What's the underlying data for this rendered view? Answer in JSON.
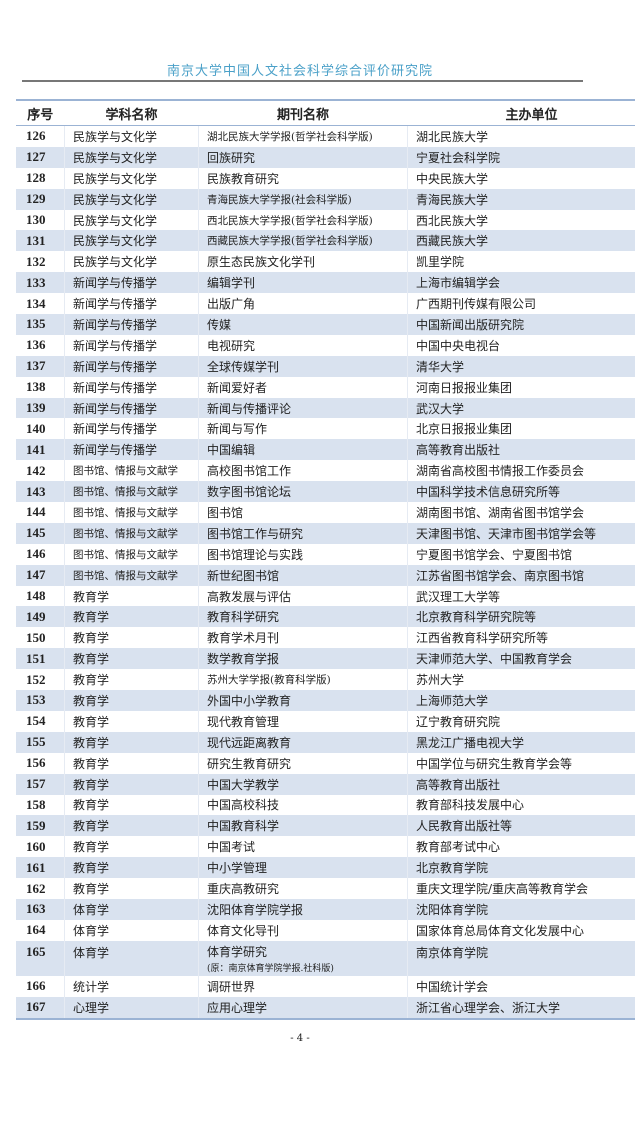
{
  "header": {
    "institution": "南京大学中国人文社会科学综合评价研究院"
  },
  "table": {
    "columns": [
      "序号",
      "学科名称",
      "期刊名称",
      "主办单位"
    ],
    "rows": [
      {
        "no": "126",
        "subject": "民族学与文化学",
        "journal": "湖北民族大学学报(哲学社会科学版)",
        "publisher": "湖北民族大学"
      },
      {
        "no": "127",
        "subject": "民族学与文化学",
        "journal": "回族研究",
        "publisher": "宁夏社会科学院"
      },
      {
        "no": "128",
        "subject": "民族学与文化学",
        "journal": "民族教育研究",
        "publisher": "中央民族大学"
      },
      {
        "no": "129",
        "subject": "民族学与文化学",
        "journal": "青海民族大学学报(社会科学版)",
        "publisher": "青海民族大学"
      },
      {
        "no": "130",
        "subject": "民族学与文化学",
        "journal": "西北民族大学学报(哲学社会科学版)",
        "publisher": "西北民族大学"
      },
      {
        "no": "131",
        "subject": "民族学与文化学",
        "journal": "西藏民族大学学报(哲学社会科学版)",
        "publisher": "西藏民族大学"
      },
      {
        "no": "132",
        "subject": "民族学与文化学",
        "journal": "原生态民族文化学刊",
        "publisher": "凯里学院"
      },
      {
        "no": "133",
        "subject": "新闻学与传播学",
        "journal": "编辑学刊",
        "publisher": "上海市编辑学会"
      },
      {
        "no": "134",
        "subject": "新闻学与传播学",
        "journal": "出版广角",
        "publisher": "广西期刊传媒有限公司"
      },
      {
        "no": "135",
        "subject": "新闻学与传播学",
        "journal": "传媒",
        "publisher": "中国新闻出版研究院"
      },
      {
        "no": "136",
        "subject": "新闻学与传播学",
        "journal": "电视研究",
        "publisher": "中国中央电视台"
      },
      {
        "no": "137",
        "subject": "新闻学与传播学",
        "journal": "全球传媒学刊",
        "publisher": "清华大学"
      },
      {
        "no": "138",
        "subject": "新闻学与传播学",
        "journal": "新闻爱好者",
        "publisher": "河南日报报业集团"
      },
      {
        "no": "139",
        "subject": "新闻学与传播学",
        "journal": "新闻与传播评论",
        "publisher": "武汉大学"
      },
      {
        "no": "140",
        "subject": "新闻学与传播学",
        "journal": "新闻与写作",
        "publisher": "北京日报报业集团"
      },
      {
        "no": "141",
        "subject": "新闻学与传播学",
        "journal": "中国编辑",
        "publisher": "高等教育出版社"
      },
      {
        "no": "142",
        "subject": "图书馆、情报与文献学",
        "journal": "高校图书馆工作",
        "publisher": "湖南省高校图书情报工作委员会"
      },
      {
        "no": "143",
        "subject": "图书馆、情报与文献学",
        "journal": "数字图书馆论坛",
        "publisher": "中国科学技术信息研究所等"
      },
      {
        "no": "144",
        "subject": "图书馆、情报与文献学",
        "journal": "图书馆",
        "publisher": "湖南图书馆、湖南省图书馆学会"
      },
      {
        "no": "145",
        "subject": "图书馆、情报与文献学",
        "journal": "图书馆工作与研究",
        "publisher": "天津图书馆、天津市图书馆学会等"
      },
      {
        "no": "146",
        "subject": "图书馆、情报与文献学",
        "journal": "图书馆理论与实践",
        "publisher": "宁夏图书馆学会、宁夏图书馆"
      },
      {
        "no": "147",
        "subject": "图书馆、情报与文献学",
        "journal": "新世纪图书馆",
        "publisher": "江苏省图书馆学会、南京图书馆"
      },
      {
        "no": "148",
        "subject": "教育学",
        "journal": "高教发展与评估",
        "publisher": "武汉理工大学等"
      },
      {
        "no": "149",
        "subject": "教育学",
        "journal": "教育科学研究",
        "publisher": "北京教育科学研究院等"
      },
      {
        "no": "150",
        "subject": "教育学",
        "journal": "教育学术月刊",
        "publisher": "江西省教育科学研究所等"
      },
      {
        "no": "151",
        "subject": "教育学",
        "journal": "数学教育学报",
        "publisher": "天津师范大学、中国教育学会"
      },
      {
        "no": "152",
        "subject": "教育学",
        "journal": "苏州大学学报(教育科学版)",
        "publisher": "苏州大学"
      },
      {
        "no": "153",
        "subject": "教育学",
        "journal": "外国中小学教育",
        "publisher": "上海师范大学"
      },
      {
        "no": "154",
        "subject": "教育学",
        "journal": "现代教育管理",
        "publisher": "辽宁教育研究院"
      },
      {
        "no": "155",
        "subject": "教育学",
        "journal": "现代远距离教育",
        "publisher": "黑龙江广播电视大学"
      },
      {
        "no": "156",
        "subject": "教育学",
        "journal": "研究生教育研究",
        "publisher": "中国学位与研究生教育学会等"
      },
      {
        "no": "157",
        "subject": "教育学",
        "journal": "中国大学教学",
        "publisher": "高等教育出版社"
      },
      {
        "no": "158",
        "subject": "教育学",
        "journal": "中国高校科技",
        "publisher": "教育部科技发展中心"
      },
      {
        "no": "159",
        "subject": "教育学",
        "journal": "中国教育科学",
        "publisher": "人民教育出版社等"
      },
      {
        "no": "160",
        "subject": "教育学",
        "journal": "中国考试",
        "publisher": "教育部考试中心"
      },
      {
        "no": "161",
        "subject": "教育学",
        "journal": "中小学管理",
        "publisher": "北京教育学院"
      },
      {
        "no": "162",
        "subject": "教育学",
        "journal": "重庆高教研究",
        "publisher": "重庆文理学院/重庆高等教育学会"
      },
      {
        "no": "163",
        "subject": "体育学",
        "journal": "沈阳体育学院学报",
        "publisher": "沈阳体育学院"
      },
      {
        "no": "164",
        "subject": "体育学",
        "journal": "体育文化导刊",
        "publisher": "国家体育总局体育文化发展中心"
      },
      {
        "no": "165",
        "subject": "体育学",
        "journal": "体育学研究",
        "journal_note": "(原：南京体育学院学报.社科版)",
        "publisher": "南京体育学院"
      },
      {
        "no": "166",
        "subject": "统计学",
        "journal": "调研世界",
        "publisher": "中国统计学会"
      },
      {
        "no": "167",
        "subject": "心理学",
        "journal": "应用心理学",
        "publisher": "浙江省心理学会、浙江大学"
      }
    ]
  },
  "footer": {
    "page": "- 4 -"
  },
  "colors": {
    "title": "#4aa0c8",
    "stripe": "#d9e2ef",
    "border": "#9bb3d4"
  }
}
